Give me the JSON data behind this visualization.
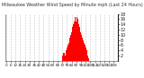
{
  "title": "Milwaukee Weather Wind Speed by Minute mph (Last 24 Hours)",
  "background_color": "#ffffff",
  "bar_color": "#ff0000",
  "grid_color": "#aaaaaa",
  "ylim": [
    0,
    18
  ],
  "yticks": [
    2,
    4,
    6,
    8,
    10,
    12,
    14,
    16,
    18
  ],
  "values": [
    0,
    0,
    0,
    0,
    0,
    0,
    0,
    0,
    0,
    0,
    0,
    0,
    0,
    0,
    0,
    0,
    0,
    0,
    0,
    0,
    0,
    0,
    0,
    0,
    0,
    0,
    0,
    0,
    0,
    0,
    0,
    0,
    0,
    0,
    0,
    0,
    0,
    0,
    0,
    0,
    0,
    0,
    0,
    0,
    0,
    0,
    0,
    0,
    0,
    0,
    0,
    0,
    0,
    0,
    0,
    0,
    0,
    0,
    0,
    0,
    0,
    0,
    0,
    0,
    0,
    0,
    0,
    0,
    0,
    0,
    0,
    0,
    2,
    3,
    4,
    3,
    2,
    4,
    5,
    6,
    7,
    8,
    9,
    10,
    11,
    13,
    14,
    15,
    17,
    16,
    15,
    17,
    16,
    14,
    13,
    11,
    12,
    10,
    9,
    8,
    7,
    6,
    5,
    4,
    3,
    2,
    1,
    0,
    0,
    0,
    0,
    0,
    0,
    0,
    0,
    0,
    0,
    0,
    0,
    0,
    0,
    0,
    0,
    0,
    0,
    0,
    0,
    0,
    0,
    0,
    0,
    0,
    0,
    0,
    0,
    0,
    0,
    0,
    0,
    0,
    0,
    2,
    0,
    0
  ],
  "xtick_interval": 6,
  "title_fontsize": 3.5,
  "tick_fontsize": 3.5
}
